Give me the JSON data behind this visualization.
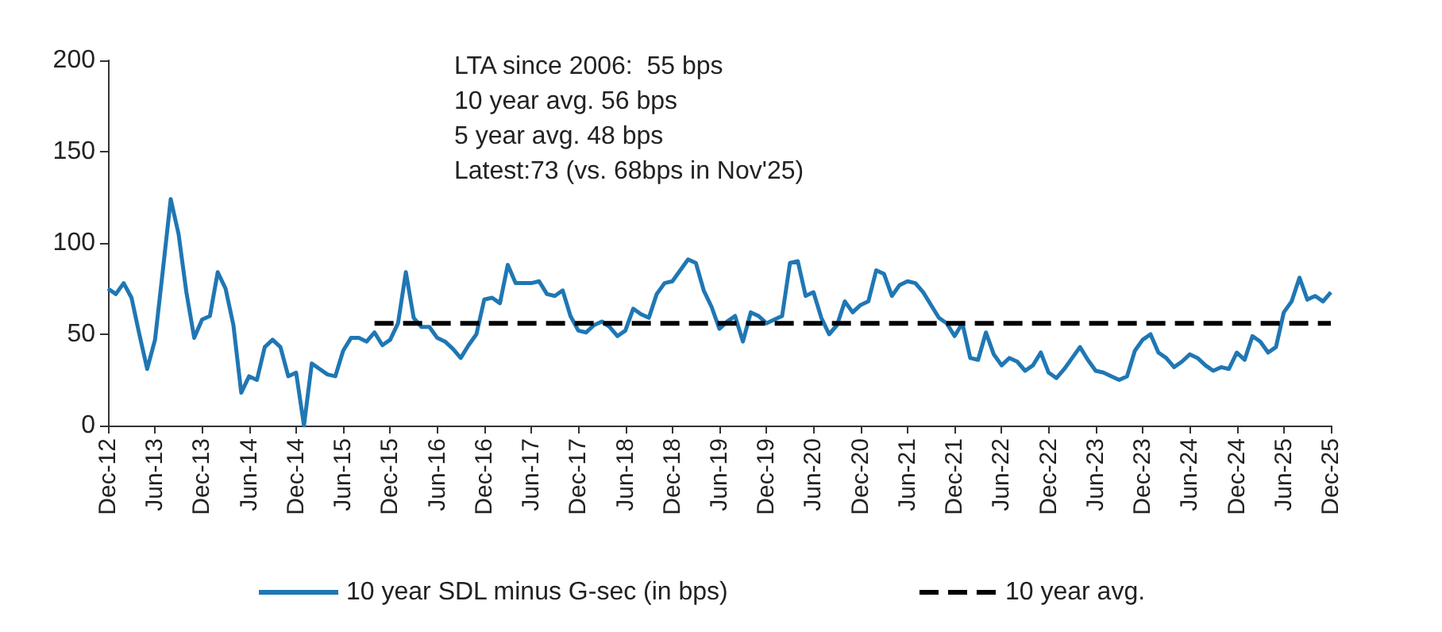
{
  "chart_data": {
    "type": "line",
    "categories": [
      "Dec-12",
      null,
      null,
      null,
      null,
      null,
      "Jun-13",
      null,
      null,
      null,
      null,
      null,
      "Dec-13",
      null,
      null,
      null,
      null,
      null,
      "Jun-14",
      null,
      null,
      null,
      null,
      null,
      "Dec-14",
      null,
      null,
      null,
      null,
      null,
      "Jun-15",
      null,
      null,
      null,
      null,
      null,
      "Dec-15",
      null,
      null,
      null,
      null,
      null,
      "Jun-16",
      null,
      null,
      null,
      null,
      null,
      "Dec-16",
      null,
      null,
      null,
      null,
      null,
      "Jun-17",
      null,
      null,
      null,
      null,
      null,
      "Dec-17",
      null,
      null,
      null,
      null,
      null,
      "Jun-18",
      null,
      null,
      null,
      null,
      null,
      "Dec-18",
      null,
      null,
      null,
      null,
      null,
      "Jun-19",
      null,
      null,
      null,
      null,
      null,
      "Dec-19",
      null,
      null,
      null,
      null,
      null,
      "Jun-20",
      null,
      null,
      null,
      null,
      null,
      "Dec-20",
      null,
      null,
      null,
      null,
      null,
      "Jun-21",
      null,
      null,
      null,
      null,
      null,
      "Dec-21",
      null,
      null,
      null,
      null,
      null,
      "Jun-22",
      null,
      null,
      null,
      null,
      null,
      "Dec-22",
      null,
      null,
      null,
      null,
      null,
      "Jun-23",
      null,
      null,
      null,
      null,
      null,
      "Dec-23",
      null,
      null,
      null,
      null,
      null,
      "Jun-24",
      null,
      null,
      null,
      null,
      null,
      "Dec-24",
      null,
      null,
      null,
      null,
      null,
      "Jun-25",
      null,
      null,
      null,
      null,
      null,
      "Dec-25"
    ],
    "series": [
      {
        "name": "10 year SDL minus G-sec (in bps)",
        "color": "#1f77b4",
        "line_style": "solid",
        "values": [
          75,
          72,
          78,
          70,
          50,
          31,
          47,
          85,
          124,
          105,
          73,
          48,
          58,
          60,
          84,
          75,
          55,
          18,
          27,
          25,
          43,
          47,
          43,
          27,
          29,
          0,
          34,
          31,
          28,
          27,
          41,
          48,
          48,
          46,
          51,
          44,
          47,
          56,
          84,
          59,
          54,
          54,
          48,
          46,
          42,
          37,
          44,
          50,
          69,
          70,
          67,
          88,
          78,
          78,
          78,
          79,
          72,
          71,
          74,
          60,
          52,
          51,
          55,
          57,
          54,
          49,
          52,
          64,
          61,
          59,
          72,
          78,
          79,
          85,
          91,
          89,
          74,
          65,
          53,
          57,
          60,
          46,
          62,
          60,
          56,
          58,
          60,
          89,
          90,
          71,
          73,
          59,
          50,
          55,
          68,
          62,
          66,
          68,
          85,
          83,
          71,
          77,
          79,
          78,
          73,
          66,
          59,
          56,
          49,
          56,
          37,
          36,
          51,
          39,
          33,
          37,
          35,
          30,
          33,
          40,
          29,
          26,
          31,
          37,
          43,
          36,
          30,
          29,
          27,
          25,
          27,
          41,
          47,
          50,
          40,
          37,
          32,
          35,
          39,
          37,
          33,
          30,
          32,
          31,
          40,
          36,
          49,
          46,
          40,
          43,
          62,
          68,
          81,
          69,
          71,
          68,
          73
        ]
      },
      {
        "name": "10 year avg.",
        "color": "#000000",
        "line_style": "dashed",
        "values": [
          null,
          null,
          null,
          null,
          null,
          null,
          null,
          null,
          null,
          null,
          null,
          null,
          null,
          null,
          null,
          null,
          null,
          null,
          null,
          null,
          null,
          null,
          null,
          null,
          null,
          null,
          null,
          null,
          null,
          null,
          null,
          null,
          null,
          null,
          56,
          56,
          56,
          56,
          56,
          56,
          56,
          56,
          56,
          56,
          56,
          56,
          56,
          56,
          56,
          56,
          56,
          56,
          56,
          56,
          56,
          56,
          56,
          56,
          56,
          56,
          56,
          56,
          56,
          56,
          56,
          56,
          56,
          56,
          56,
          56,
          56,
          56,
          56,
          56,
          56,
          56,
          56,
          56,
          56,
          56,
          56,
          56,
          56,
          56,
          56,
          56,
          56,
          56,
          56,
          56,
          56,
          56,
          56,
          56,
          56,
          56,
          56,
          56,
          56,
          56,
          56,
          56,
          56,
          56,
          56,
          56,
          56,
          56,
          56,
          56,
          56,
          56,
          56,
          56,
          56,
          56,
          56,
          56,
          56,
          56,
          56,
          56,
          56,
          56,
          56,
          56,
          56,
          56,
          56,
          56,
          56,
          56,
          56,
          56,
          56,
          56,
          56,
          56,
          56,
          56,
          56,
          56,
          56,
          56,
          56,
          56,
          56,
          56,
          56,
          56,
          56,
          56,
          56,
          56,
          56,
          56,
          56
        ]
      }
    ],
    "ylim": [
      0,
      200
    ],
    "yticks": [
      0,
      50,
      100,
      150,
      200
    ],
    "grid": false,
    "legend": "bottom",
    "marker": "none",
    "annotations": [
      "LTA since 2006:  55 bps",
      "10 year avg. 56 bps",
      "5 year avg. 48 bps",
      "Latest:73 (vs. 68bps in Nov'25)"
    ]
  }
}
